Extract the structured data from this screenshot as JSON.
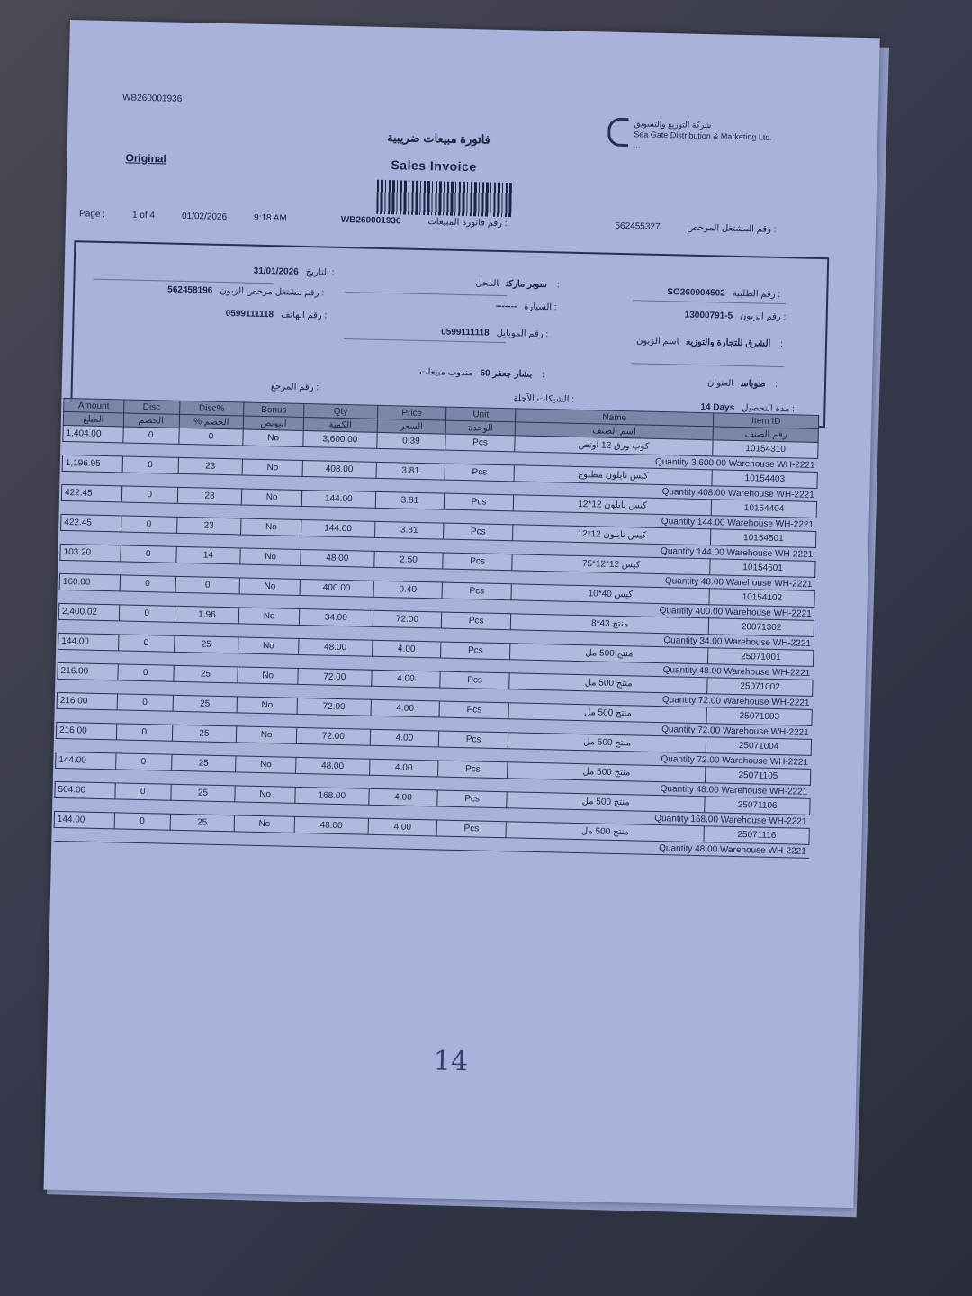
{
  "doc_number_top": "WB260001936",
  "company": {
    "name_ar": "شركة التوزيع والتسويق",
    "name_en": "Sea Gate Distribution & Marketing Ltd.",
    "tagline": "..."
  },
  "title_ar": "فاتورة مبيعات ضريبية",
  "title_en": "Sales Invoice",
  "copy_label": "Original",
  "meta": {
    "page_label": "Page :",
    "page_value": "1 of 4",
    "print_date": "01/02/2026",
    "print_time": "9:18 AM",
    "invoice_no": "WB260001936",
    "invoice_no_label_ar": "رقم فاتورة المبيعات :",
    "licensed_label_ar": "رقم المشتغل المرخص :",
    "licensed_value": "562455327"
  },
  "info": {
    "date_label": "التاريخ :",
    "date_value": "31/01/2026",
    "cust_licensed_label": "رقم مشتغل مرخص الزبون :",
    "cust_licensed_value": "562458196",
    "phone_label": "رقم الهاتف :",
    "phone_value": "0599111118",
    "reference_label": "رقم المرجع :",
    "shop_label": "المحل :",
    "shop_value": "سوبر ماركت",
    "car_label": "السيارة :",
    "car_value": "-------",
    "mobile_label": "رقم الموبايل :",
    "mobile_value": "0599111118",
    "salesman_label": "مندوب مبيعات :",
    "salesman_value": "بشار جعفر 60",
    "cheques_label": "الشيكات الآجلة :",
    "order_label": "رقم الطلبية :",
    "order_value": "SO260004502",
    "customer_no_label": "رقم الزبون :",
    "customer_no_value": "13000791-5",
    "customer_name_label": "اسم الزبون :",
    "customer_name_value": "الشرق للتجارة والتوزيع",
    "address_label": "العنوان :",
    "address_value": "طوباس",
    "term_label": "مدة التحصيل :",
    "term_value": "14 Days"
  },
  "table": {
    "headers": [
      {
        "en": "Amount",
        "ar": "المبلغ"
      },
      {
        "en": "Disc",
        "ar": "الخصم"
      },
      {
        "en": "Disc%",
        "ar": "% الخصم"
      },
      {
        "en": "Bonus",
        "ar": "البونص"
      },
      {
        "en": "Qty",
        "ar": "الكمية"
      },
      {
        "en": "Price",
        "ar": "السعر"
      },
      {
        "en": "Unit",
        "ar": "الوحدة"
      },
      {
        "en": "Name",
        "ar": "اسم الصنف"
      },
      {
        "en": "Item ID",
        "ar": "رقم الصنف"
      }
    ],
    "rows": [
      {
        "amount": "1,404.00",
        "disc": "0",
        "disc_pct": "0",
        "bonus": "No",
        "qty": "3,600.00",
        "price": "0.39",
        "unit": "Pcs",
        "name": "كوب ورق 12 اونص",
        "item_id": "10154310",
        "sub": "Quantity  3,600.00  Warehouse  WH-2221"
      },
      {
        "amount": "1,196.95",
        "disc": "0",
        "disc_pct": "23",
        "bonus": "No",
        "qty": "408.00",
        "price": "3.81",
        "unit": "Pcs",
        "name": "كيس نايلون مطبوع",
        "item_id": "10154403",
        "sub": "Quantity  408.00  Warehouse  WH-2221"
      },
      {
        "amount": "422.45",
        "disc": "0",
        "disc_pct": "23",
        "bonus": "No",
        "qty": "144.00",
        "price": "3.81",
        "unit": "Pcs",
        "name": "كيس نايلون 12*12",
        "item_id": "10154404",
        "sub": "Quantity  144.00  Warehouse  WH-2221"
      },
      {
        "amount": "422.45",
        "disc": "0",
        "disc_pct": "23",
        "bonus": "No",
        "qty": "144.00",
        "price": "3.81",
        "unit": "Pcs",
        "name": "كيس نايلون 12*12",
        "item_id": "10154501",
        "sub": "Quantity  144.00  Warehouse  WH-2221"
      },
      {
        "amount": "103.20",
        "disc": "0",
        "disc_pct": "14",
        "bonus": "No",
        "qty": "48.00",
        "price": "2.50",
        "unit": "Pcs",
        "name": "كيس 12*12*75",
        "item_id": "10154601",
        "sub": "Quantity  48.00  Warehouse  WH-2221"
      },
      {
        "amount": "160.00",
        "disc": "0",
        "disc_pct": "0",
        "bonus": "No",
        "qty": "400.00",
        "price": "0.40",
        "unit": "Pcs",
        "name": "كيس 40*10",
        "item_id": "10154102",
        "sub": "Quantity  400.00  Warehouse  WH-2221"
      },
      {
        "amount": "2,400.02",
        "disc": "0",
        "disc_pct": "1.96",
        "bonus": "No",
        "qty": "34.00",
        "price": "72.00",
        "unit": "Pcs",
        "name": "منتج 43*8",
        "item_id": "20071302",
        "sub": "Quantity  34.00  Warehouse  WH-2221"
      },
      {
        "amount": "144.00",
        "disc": "0",
        "disc_pct": "25",
        "bonus": "No",
        "qty": "48.00",
        "price": "4.00",
        "unit": "Pcs",
        "name": "منتج 500 مل",
        "item_id": "25071001",
        "sub": "Quantity  48.00  Warehouse  WH-2221"
      },
      {
        "amount": "216.00",
        "disc": "0",
        "disc_pct": "25",
        "bonus": "No",
        "qty": "72.00",
        "price": "4.00",
        "unit": "Pcs",
        "name": "منتج 500 مل",
        "item_id": "25071002",
        "sub": "Quantity  72.00  Warehouse  WH-2221"
      },
      {
        "amount": "216.00",
        "disc": "0",
        "disc_pct": "25",
        "bonus": "No",
        "qty": "72.00",
        "price": "4.00",
        "unit": "Pcs",
        "name": "منتج 500 مل",
        "item_id": "25071003",
        "sub": "Quantity  72.00  Warehouse  WH-2221"
      },
      {
        "amount": "216.00",
        "disc": "0",
        "disc_pct": "25",
        "bonus": "No",
        "qty": "72.00",
        "price": "4.00",
        "unit": "Pcs",
        "name": "منتج 500 مل",
        "item_id": "25071004",
        "sub": "Quantity  72.00  Warehouse  WH-2221"
      },
      {
        "amount": "144.00",
        "disc": "0",
        "disc_pct": "25",
        "bonus": "No",
        "qty": "48.00",
        "price": "4.00",
        "unit": "Pcs",
        "name": "منتج 500 مل",
        "item_id": "25071105",
        "sub": "Quantity  48.00  Warehouse  WH-2221"
      },
      {
        "amount": "504.00",
        "disc": "0",
        "disc_pct": "25",
        "bonus": "No",
        "qty": "168.00",
        "price": "4.00",
        "unit": "Pcs",
        "name": "منتج 500 مل",
        "item_id": "25071106",
        "sub": "Quantity  168.00  Warehouse  WH-2221"
      },
      {
        "amount": "144.00",
        "disc": "0",
        "disc_pct": "25",
        "bonus": "No",
        "qty": "48.00",
        "price": "4.00",
        "unit": "Pcs",
        "name": "منتج 500 مل",
        "item_id": "25071116",
        "sub": "Quantity  48.00  Warehouse  WH-2221"
      }
    ]
  },
  "handwritten_note": "14"
}
